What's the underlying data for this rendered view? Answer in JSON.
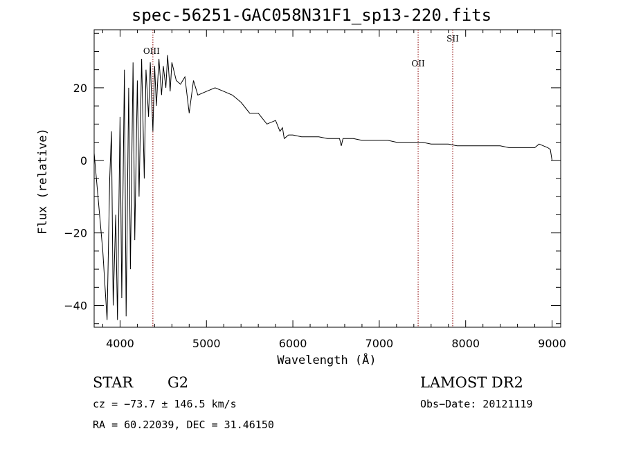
{
  "chart_data": {
    "type": "line",
    "title": "spec-56251-GAC058N31F1_sp13-220.fits",
    "xlabel": "Wavelength (Å)",
    "ylabel": "Flux (relative)",
    "xlim": [
      3700,
      9100
    ],
    "ylim": [
      -46,
      36
    ],
    "xticks": [
      4000,
      5000,
      6000,
      7000,
      8000,
      9000
    ],
    "yticks": [
      -40,
      -20,
      0,
      20
    ],
    "x": [
      3700,
      3800,
      3850,
      3880,
      3900,
      3920,
      3950,
      3970,
      4000,
      4020,
      4050,
      4070,
      4100,
      4120,
      4150,
      4170,
      4200,
      4220,
      4250,
      4280,
      4300,
      4330,
      4350,
      4380,
      4400,
      4420,
      4450,
      4480,
      4500,
      4530,
      4550,
      4580,
      4600,
      4650,
      4700,
      4750,
      4800,
      4850,
      4900,
      5000,
      5100,
      5200,
      5300,
      5400,
      5500,
      5600,
      5700,
      5800,
      5850,
      5880,
      5900,
      5950,
      6000,
      6100,
      6200,
      6300,
      6400,
      6500,
      6540,
      6560,
      6580,
      6600,
      6700,
      6800,
      6900,
      7000,
      7100,
      7200,
      7300,
      7400,
      7500,
      7600,
      7700,
      7800,
      7900,
      8000,
      8100,
      8200,
      8300,
      8400,
      8500,
      8600,
      8700,
      8800,
      8850,
      8900,
      8950,
      8980,
      9000
    ],
    "y": [
      2,
      -25,
      -44,
      -5,
      8,
      -40,
      -15,
      -44,
      12,
      -38,
      25,
      -43,
      20,
      -30,
      27,
      -22,
      22,
      -10,
      28,
      -5,
      25,
      12,
      27,
      8,
      26,
      15,
      28,
      18,
      26,
      20,
      29,
      19,
      27,
      22,
      21,
      23,
      13,
      22,
      18,
      19,
      20,
      19,
      18,
      16,
      13,
      13,
      10,
      11,
      8,
      9,
      6,
      7,
      7,
      6.5,
      6.5,
      6.5,
      6,
      6,
      6,
      4,
      6,
      6,
      6,
      5.5,
      5.5,
      5.5,
      5.5,
      5,
      5,
      5,
      5,
      4.5,
      4.5,
      4.5,
      4,
      4,
      4,
      4,
      4,
      4,
      3.5,
      3.5,
      3.5,
      3.5,
      4.5,
      4,
      3.5,
      3,
      0
    ],
    "lines": [
      {
        "name": "OIII",
        "x": 4380
      },
      {
        "name": "OII",
        "x": 7450
      },
      {
        "name": "SII",
        "x": 7850
      }
    ],
    "grid": false
  },
  "info": {
    "class": "STAR",
    "subclass": "G2",
    "survey": "LAMOST DR2",
    "cz": "cz = −73.7 ± 146.5 km/s",
    "obs_date": "Obs−Date: 20121119",
    "coords": "RA =  60.22039, DEC =  31.46150"
  },
  "colors": {
    "spectrum": "#000000",
    "line_marker": "#8b0000"
  }
}
